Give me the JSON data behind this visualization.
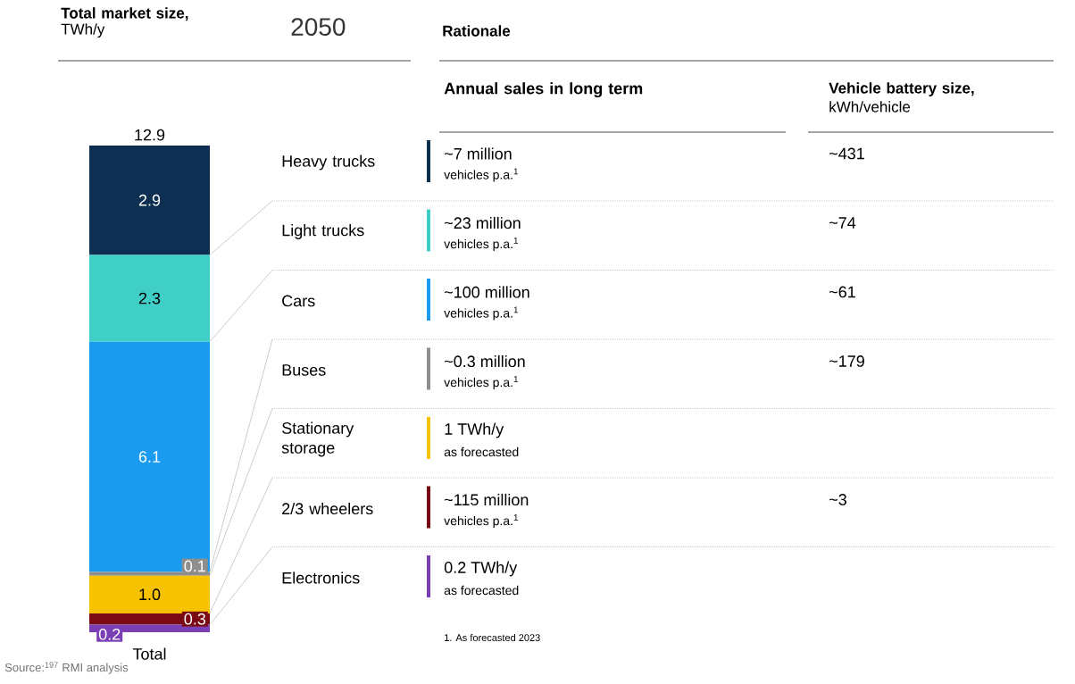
{
  "chart_data": {
    "type": "bar",
    "stacked": true,
    "title": "**Total market size,** TWh/y",
    "subtitle": "2050",
    "categories": [
      "Total"
    ],
    "totals": [
      "12.9"
    ],
    "series": [
      {
        "name": "Electronics",
        "color": "#7b3fb5",
        "values": [
          0.2
        ],
        "value_labels": [
          "0.2"
        ]
      },
      {
        "name": "2/3 wheelers",
        "color": "#7a0a14",
        "values": [
          0.3
        ],
        "value_labels": [
          "0.3"
        ]
      },
      {
        "name": "Stationary storage",
        "color": "#f7c200",
        "values": [
          1.0
        ],
        "value_labels": [
          "1.0"
        ]
      },
      {
        "name": "Buses",
        "color": "#8e8e8e",
        "values": [
          0.1
        ],
        "value_labels": [
          "0.1"
        ]
      },
      {
        "name": "Cars",
        "color": "#1a9bf0",
        "values": [
          6.1
        ],
        "value_labels": [
          "6.1"
        ]
      },
      {
        "name": "Light trucks",
        "color": "#3fcfc6",
        "values": [
          2.3
        ],
        "value_labels": [
          "2.3"
        ]
      },
      {
        "name": "Heavy trucks",
        "color": "#0d2f52",
        "values": [
          2.9
        ],
        "value_labels": [
          "2.9"
        ]
      }
    ],
    "annotations": [
      "Rationale",
      "Annual sales in long term",
      "**Vehicle battery size,** kWh/vehicle",
      "~7 million",
      "vehicles p.a.$^{1}$",
      "~431",
      "~23 million",
      "vehicles p.a.$^{1}$",
      "~74",
      "~100 million",
      "vehicles p.a.$^{1}$",
      "~61",
      "~0.3 million",
      "vehicles p.a.$^{1}$",
      "~179",
      "1 TWh/y",
      "as forecasted",
      "~115 million",
      "vehicles p.a.$^{1}$",
      "~3",
      "0.2 TWh/y",
      "as forecasted",
      "1. As forecasted 2023",
      "Source:$^{197}$ RMI analysis"
    ]
  }
}
